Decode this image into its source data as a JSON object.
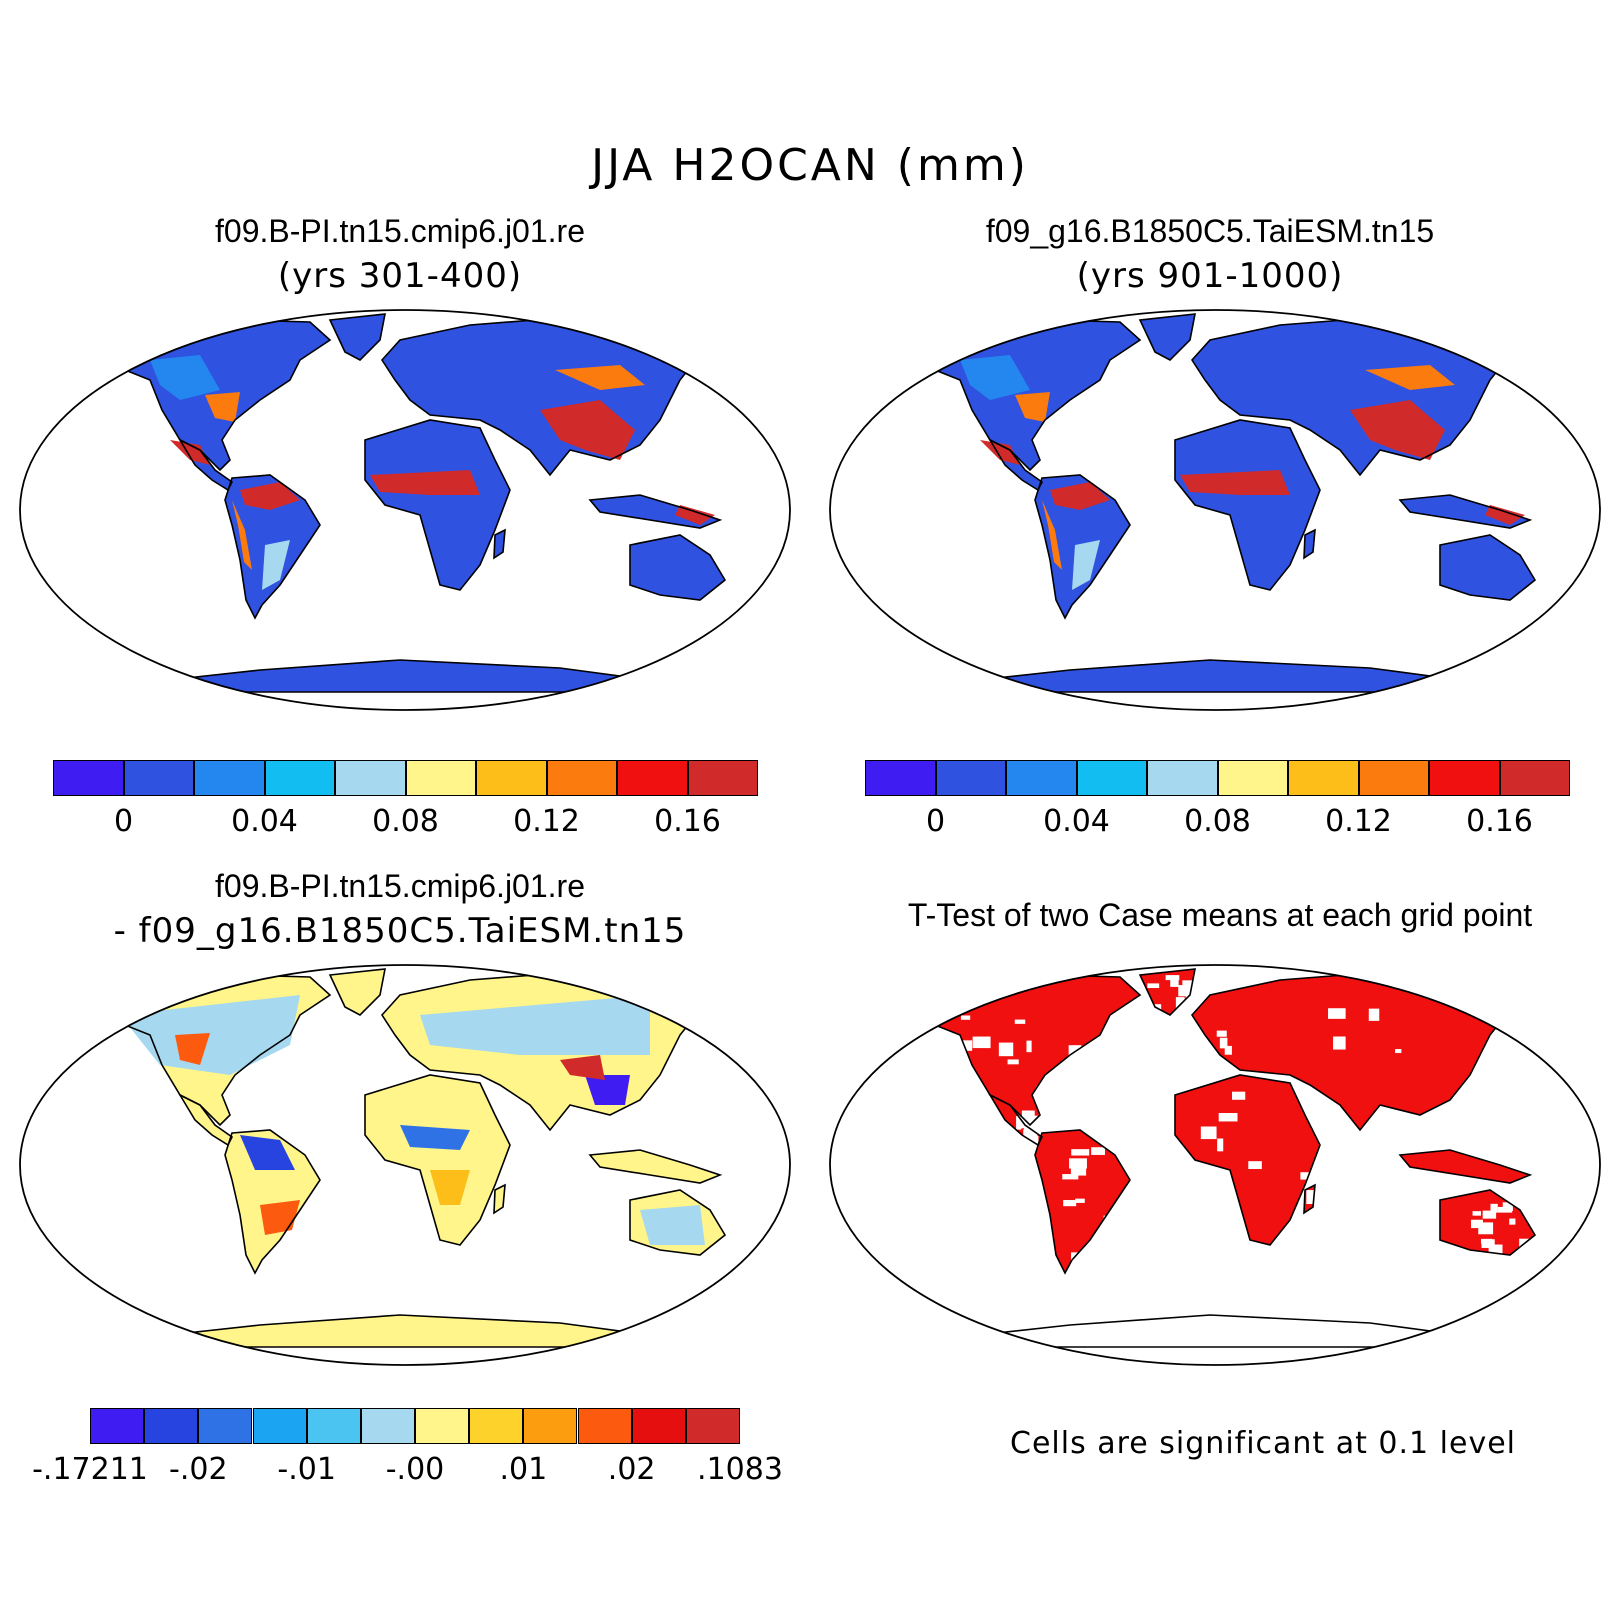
{
  "figure": {
    "title": "JJA H2OCAN (mm)"
  },
  "panels": [
    {
      "id": "case1",
      "title": "f09.B-PI.tn15.cmip6.j01.re",
      "subtitle": "(yrs 301-400)"
    },
    {
      "id": "case2",
      "title": "f09_g16.B1850C5.TaiESM.tn15",
      "subtitle": "(yrs 901-1000)"
    },
    {
      "id": "diff",
      "title": "f09.B-PI.tn15.cmip6.j01.re",
      "subtitle": "- f09_g16.B1850C5.TaiESM.tn15"
    },
    {
      "id": "ttest",
      "title": "T-Test of two Case means at each grid point",
      "note": "Cells are significant at 0.1 level"
    }
  ],
  "colorbars": {
    "top": {
      "colors": [
        "#3f1cf2",
        "#2f52e0",
        "#2487f0",
        "#12bdf2",
        "#a6d8f0",
        "#fff58a",
        "#fdbe1a",
        "#fb7b0f",
        "#f01010",
        "#d02a2a"
      ],
      "tick_labels": [
        "0",
        "0.04",
        "0.08",
        "0.12",
        "0.16"
      ],
      "tick_after_box": [
        1,
        3,
        5,
        7,
        9
      ]
    },
    "diff": {
      "colors": [
        "#3f1cf2",
        "#2744e0",
        "#2f72e6",
        "#1aa4f2",
        "#4cc4f2",
        "#a6d8f0",
        "#fff58a",
        "#fdd22a",
        "#fb9d0f",
        "#fb5a0f",
        "#e60f0f",
        "#d02a2a"
      ],
      "tick_labels": [
        "-.17211",
        "-.02",
        "-.01",
        "-.00",
        ".01",
        ".02",
        ".1083"
      ],
      "tick_after_box": [
        0,
        2,
        4,
        6,
        8,
        10,
        12
      ]
    }
  },
  "colors": {
    "land_high": "#d02a2a",
    "land_base": "#2f52e0",
    "significant": "#f01010",
    "diff_base": "#fff58a"
  }
}
